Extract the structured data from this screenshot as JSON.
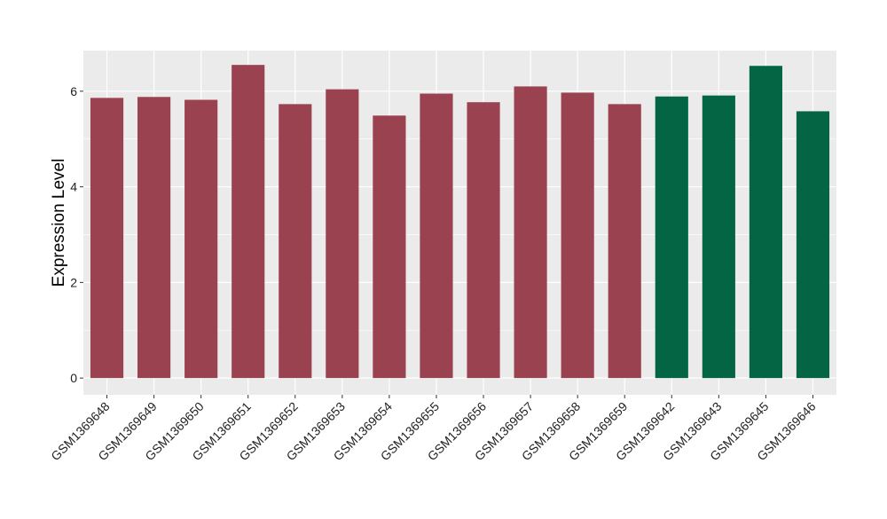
{
  "chart_data": {
    "type": "bar",
    "ylabel": "Expression Level",
    "xlabel": "",
    "ylim": [
      -0.35,
      6.85
    ],
    "yticks": [
      0,
      2,
      4,
      6
    ],
    "grid": true,
    "legend": "none",
    "colors": {
      "group1": "#9b4251",
      "group2": "#036544",
      "panel": "#ebebeb",
      "grid": "#ffffff"
    },
    "categories": [
      "GSM1369648",
      "GSM1369649",
      "GSM1369650",
      "GSM1369651",
      "GSM1369652",
      "GSM1369653",
      "GSM1369654",
      "GSM1369655",
      "GSM1369656",
      "GSM1369657",
      "GSM1369658",
      "GSM1369659",
      "GSM1369642",
      "GSM1369643",
      "GSM1369645",
      "GSM1369646"
    ],
    "values": [
      5.86,
      5.88,
      5.82,
      6.55,
      5.73,
      6.04,
      5.49,
      5.95,
      5.77,
      6.1,
      5.97,
      5.73,
      5.89,
      5.91,
      6.53,
      5.58
    ],
    "groups": [
      1,
      1,
      1,
      1,
      1,
      1,
      1,
      1,
      1,
      1,
      1,
      1,
      2,
      2,
      2,
      2
    ]
  }
}
